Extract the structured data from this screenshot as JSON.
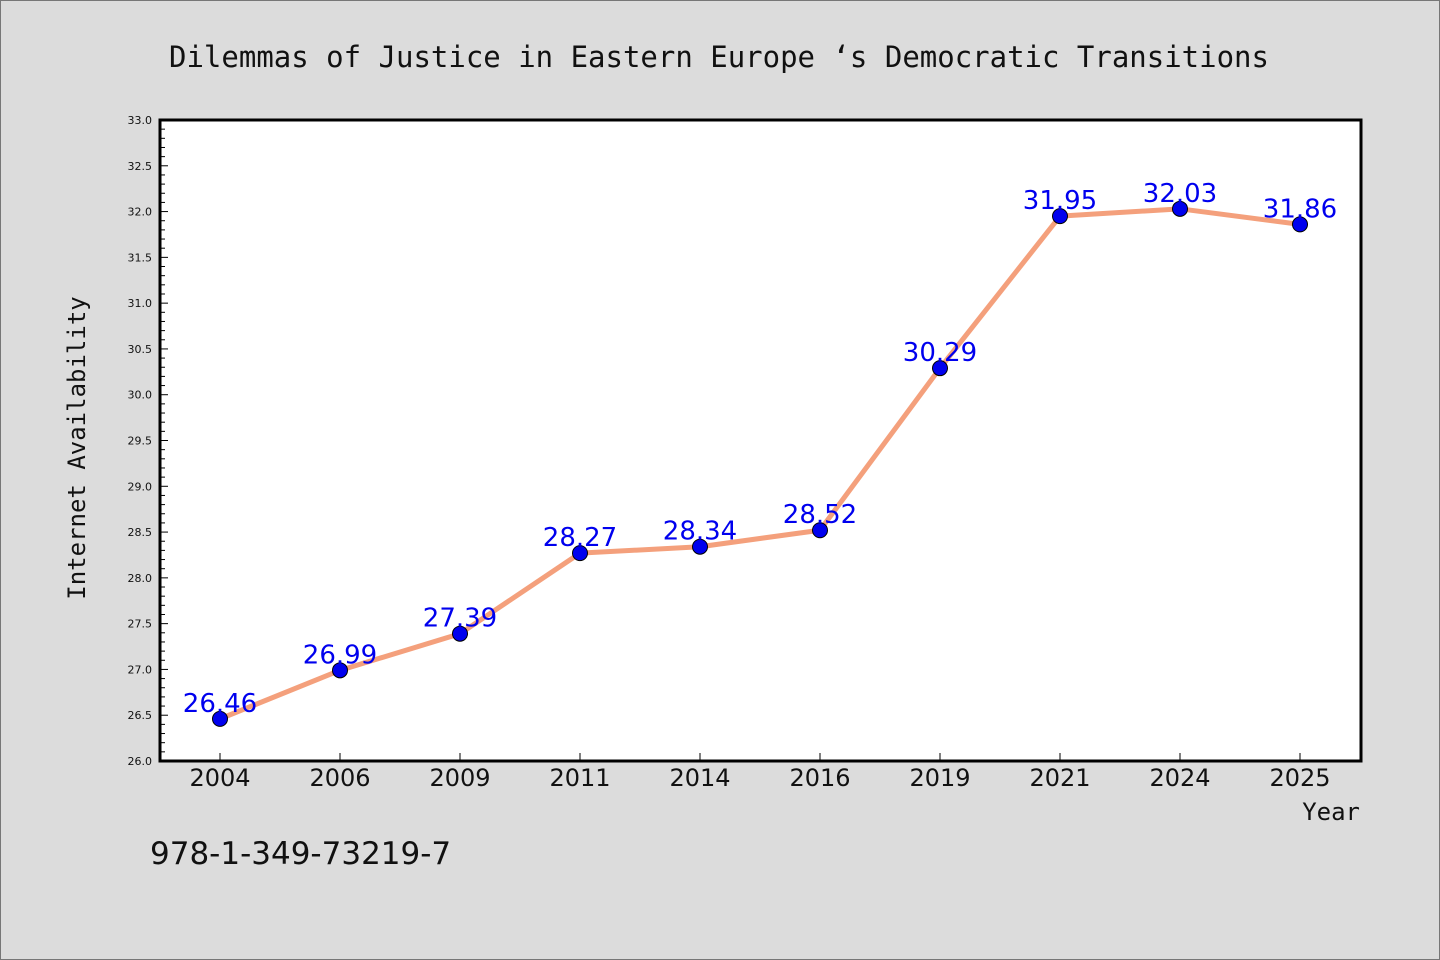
{
  "chart_data": {
    "type": "line",
    "title": "Dilemmas of Justice in Eastern Europe ‘s Democratic Transitions",
    "xlabel": "Year",
    "ylabel": "Internet Availability",
    "categories": [
      "2004",
      "2006",
      "2009",
      "2011",
      "2014",
      "2016",
      "2019",
      "2021",
      "2024",
      "2025"
    ],
    "values": [
      26.46,
      26.99,
      27.39,
      28.27,
      28.34,
      28.52,
      30.29,
      31.95,
      32.03,
      31.86
    ],
    "data_labels": [
      "26.46",
      "26.99",
      "27.39",
      "28.27",
      "28.34",
      "28.52",
      "30.29",
      "31.95",
      "32.03",
      "31.86"
    ],
    "ylim": [
      26.0,
      33.0
    ],
    "yticks": [
      "26.0",
      "26.5",
      "27.0",
      "27.5",
      "28.0",
      "28.5",
      "29.0",
      "29.5",
      "30.0",
      "30.5",
      "31.0",
      "31.5",
      "32.0",
      "32.5",
      "33.0"
    ],
    "grid": false,
    "line_color": "#f4a07c",
    "marker_color": "#0000ee",
    "label_color": "#0000ee",
    "background_color": "#dcdcdc",
    "plot_background": "#ffffff"
  },
  "footer": {
    "isbn": "978-1-349-73219-7"
  }
}
